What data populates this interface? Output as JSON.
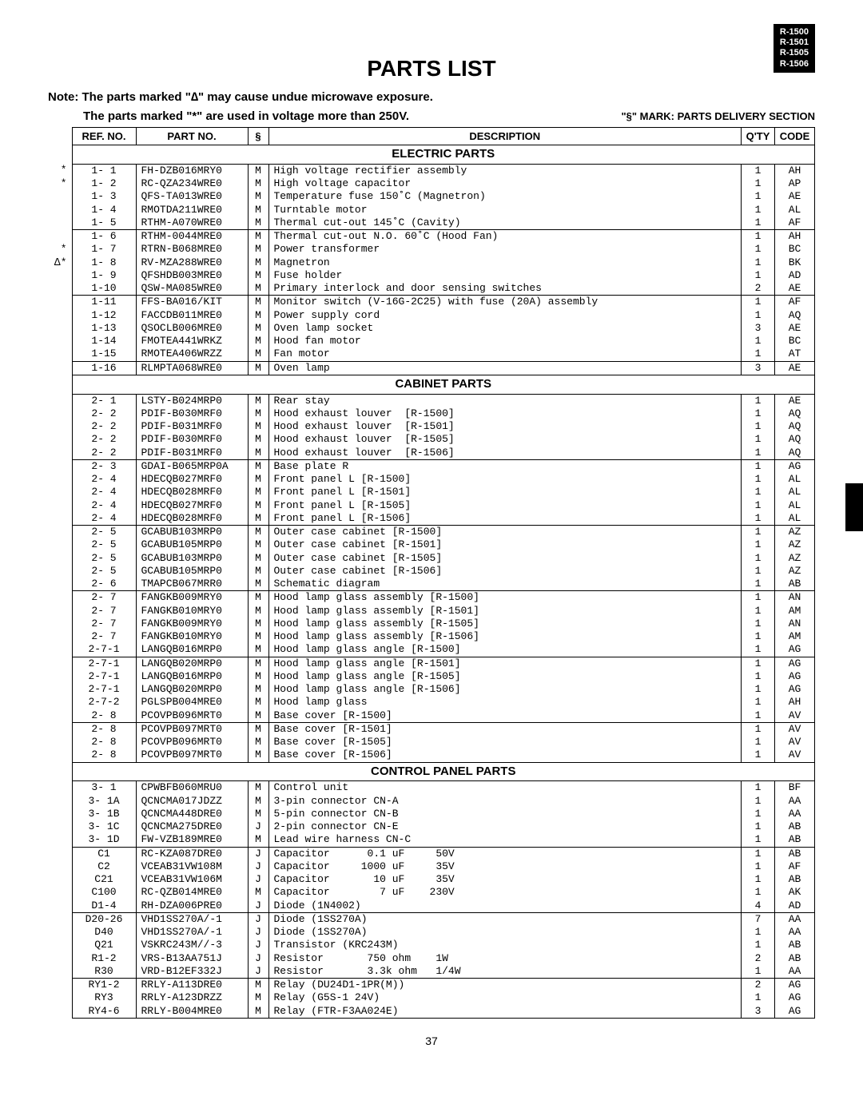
{
  "models": [
    "R-1500",
    "R-1501",
    "R-1505",
    "R-1506"
  ],
  "title": "PARTS LIST",
  "note_line1": "Note: The parts marked \"∆\" may cause undue microwave exposure.",
  "note_line2": "The parts marked \"*\" are used in voltage more than 250V.",
  "delivery_mark": "\"§\" MARK: PARTS DELIVERY SECTION",
  "headers": {
    "ref": "REF. NO.",
    "part": "PART NO.",
    "s": "§",
    "desc": "DESCRIPTION",
    "qty": "Q'TY",
    "code": "CODE"
  },
  "sections": [
    {
      "title": "ELECTRIC PARTS",
      "groups": [
        [
          {
            "mark": "*",
            "ref": "1- 1",
            "part": "FH-DZB016MRY0",
            "s": "M",
            "desc": "High voltage rectifier assembly",
            "qty": "1",
            "code": "AH"
          },
          {
            "mark": "*",
            "ref": "1- 2",
            "part": "RC-QZA234WRE0",
            "s": "M",
            "desc": "High voltage capacitor",
            "qty": "1",
            "code": "AP"
          },
          {
            "mark": "",
            "ref": "1- 3",
            "part": "QFS-TA013WRE0",
            "s": "M",
            "desc": "Temperature fuse 150˚C (Magnetron)",
            "qty": "1",
            "code": "AE"
          },
          {
            "mark": "",
            "ref": "1- 4",
            "part": "RMOTDA211WRE0",
            "s": "M",
            "desc": "Turntable motor",
            "qty": "1",
            "code": "AL"
          },
          {
            "mark": "",
            "ref": "1- 5",
            "part": "RTHM-A070WRE0",
            "s": "M",
            "desc": "Thermal cut-out 145˚C (Cavity)",
            "qty": "1",
            "code": "AF"
          }
        ],
        [
          {
            "mark": "",
            "ref": "1- 6",
            "part": "RTHM-0044MRE0",
            "s": "M",
            "desc": "Thermal cut-out N.O. 60˚C (Hood Fan)",
            "qty": "1",
            "code": "AH"
          },
          {
            "mark": "*",
            "ref": "1- 7",
            "part": "RTRN-B068MRE0",
            "s": "M",
            "desc": "Power transformer",
            "qty": "1",
            "code": "BC"
          },
          {
            "mark": "∆*",
            "ref": "1- 8",
            "part": "RV-MZA288WRE0",
            "s": "M",
            "desc": "Magnetron",
            "qty": "1",
            "code": "BK"
          },
          {
            "mark": "",
            "ref": "1- 9",
            "part": "QFSHDB003MRE0",
            "s": "M",
            "desc": "Fuse holder",
            "qty": "1",
            "code": "AD"
          },
          {
            "mark": "",
            "ref": "1-10",
            "part": "QSW-MA085WRE0",
            "s": "M",
            "desc": "Primary interlock and door sensing switches",
            "qty": "2",
            "code": "AE"
          }
        ],
        [
          {
            "mark": "",
            "ref": "1-11",
            "part": "FFS-BA016/KIT",
            "s": "M",
            "desc": "Monitor switch (V-16G-2C25) with fuse (20A) assembly",
            "qty": "1",
            "code": "AF"
          },
          {
            "mark": "",
            "ref": "1-12",
            "part": "FACCDB011MRE0",
            "s": "M",
            "desc": "Power supply cord",
            "qty": "1",
            "code": "AQ"
          },
          {
            "mark": "",
            "ref": "1-13",
            "part": "QSOCLB006MRE0",
            "s": "M",
            "desc": "Oven lamp socket",
            "qty": "3",
            "code": "AE"
          },
          {
            "mark": "",
            "ref": "1-14",
            "part": "FMOTEA441WRKZ",
            "s": "M",
            "desc": "Hood fan motor",
            "qty": "1",
            "code": "BC"
          },
          {
            "mark": "",
            "ref": "1-15",
            "part": "RMOTEA406WRZZ",
            "s": "M",
            "desc": "Fan motor",
            "qty": "1",
            "code": "AT"
          }
        ],
        [
          {
            "mark": "",
            "ref": "1-16",
            "part": "RLMPTA068WRE0",
            "s": "M",
            "desc": "Oven lamp",
            "qty": "3",
            "code": "AE"
          }
        ]
      ]
    },
    {
      "title": "CABINET PARTS",
      "groups": [
        [
          {
            "mark": "",
            "ref": "2- 1",
            "part": "LSTY-B024MRP0",
            "s": "M",
            "desc": "Rear stay",
            "qty": "1",
            "code": "AE"
          },
          {
            "mark": "",
            "ref": "2- 2",
            "part": "PDIF-B030MRF0",
            "s": "M",
            "desc": "Hood exhaust louver  [R-1500]",
            "qty": "1",
            "code": "AQ"
          },
          {
            "mark": "",
            "ref": "2- 2",
            "part": "PDIF-B031MRF0",
            "s": "M",
            "desc": "Hood exhaust louver  [R-1501]",
            "qty": "1",
            "code": "AQ"
          },
          {
            "mark": "",
            "ref": "2- 2",
            "part": "PDIF-B030MRF0",
            "s": "M",
            "desc": "Hood exhaust louver  [R-1505]",
            "qty": "1",
            "code": "AQ"
          },
          {
            "mark": "",
            "ref": "2- 2",
            "part": "PDIF-B031MRF0",
            "s": "M",
            "desc": "Hood exhaust louver  [R-1506]",
            "qty": "1",
            "code": "AQ"
          }
        ],
        [
          {
            "mark": "",
            "ref": "2- 3",
            "part": "GDAI-B065MRP0A",
            "s": "M",
            "desc": "Base plate R",
            "qty": "1",
            "code": "AG"
          },
          {
            "mark": "",
            "ref": "2- 4",
            "part": "HDECQB027MRF0",
            "s": "M",
            "desc": "Front panel L [R-1500]",
            "qty": "1",
            "code": "AL"
          },
          {
            "mark": "",
            "ref": "2- 4",
            "part": "HDECQB028MRF0",
            "s": "M",
            "desc": "Front panel L [R-1501]",
            "qty": "1",
            "code": "AL"
          },
          {
            "mark": "",
            "ref": "2- 4",
            "part": "HDECQB027MRF0",
            "s": "M",
            "desc": "Front panel L [R-1505]",
            "qty": "1",
            "code": "AL"
          },
          {
            "mark": "",
            "ref": "2- 4",
            "part": "HDECQB028MRF0",
            "s": "M",
            "desc": "Front panel L [R-1506]",
            "qty": "1",
            "code": "AL"
          }
        ],
        [
          {
            "mark": "",
            "ref": "2- 5",
            "part": "GCABUB103MRP0",
            "s": "M",
            "desc": "Outer case cabinet [R-1500]",
            "qty": "1",
            "code": "AZ"
          },
          {
            "mark": "",
            "ref": "2- 5",
            "part": "GCABUB105MRP0",
            "s": "M",
            "desc": "Outer case cabinet [R-1501]",
            "qty": "1",
            "code": "AZ"
          },
          {
            "mark": "",
            "ref": "2- 5",
            "part": "GCABUB103MRP0",
            "s": "M",
            "desc": "Outer case cabinet [R-1505]",
            "qty": "1",
            "code": "AZ"
          },
          {
            "mark": "",
            "ref": "2- 5",
            "part": "GCABUB105MRP0",
            "s": "M",
            "desc": "Outer case cabinet [R-1506]",
            "qty": "1",
            "code": "AZ"
          },
          {
            "mark": "",
            "ref": "2- 6",
            "part": "TMAPCB067MRR0",
            "s": "M",
            "desc": "Schematic diagram",
            "qty": "1",
            "code": "AB"
          }
        ],
        [
          {
            "mark": "",
            "ref": "2- 7",
            "part": "FANGKB009MRY0",
            "s": "M",
            "desc": "Hood lamp glass assembly [R-1500]",
            "qty": "1",
            "code": "AN"
          },
          {
            "mark": "",
            "ref": "2- 7",
            "part": "FANGKB010MRY0",
            "s": "M",
            "desc": "Hood lamp glass assembly [R-1501]",
            "qty": "1",
            "code": "AM"
          },
          {
            "mark": "",
            "ref": "2- 7",
            "part": "FANGKB009MRY0",
            "s": "M",
            "desc": "Hood lamp glass assembly [R-1505]",
            "qty": "1",
            "code": "AN"
          },
          {
            "mark": "",
            "ref": "2- 7",
            "part": "FANGKB010MRY0",
            "s": "M",
            "desc": "Hood lamp glass assembly [R-1506]",
            "qty": "1",
            "code": "AM"
          },
          {
            "mark": "",
            "ref": "2-7-1",
            "part": "LANGQB016MRP0",
            "s": "M",
            "desc": "Hood lamp glass angle [R-1500]",
            "qty": "1",
            "code": "AG"
          }
        ],
        [
          {
            "mark": "",
            "ref": "2-7-1",
            "part": "LANGQB020MRP0",
            "s": "M",
            "desc": "Hood lamp glass angle [R-1501]",
            "qty": "1",
            "code": "AG"
          },
          {
            "mark": "",
            "ref": "2-7-1",
            "part": "LANGQB016MRP0",
            "s": "M",
            "desc": "Hood lamp glass angle [R-1505]",
            "qty": "1",
            "code": "AG"
          },
          {
            "mark": "",
            "ref": "2-7-1",
            "part": "LANGQB020MRP0",
            "s": "M",
            "desc": "Hood lamp glass angle [R-1506]",
            "qty": "1",
            "code": "AG"
          },
          {
            "mark": "",
            "ref": "2-7-2",
            "part": "PGLSPB004MRE0",
            "s": "M",
            "desc": "Hood lamp glass",
            "qty": "1",
            "code": "AH"
          },
          {
            "mark": "",
            "ref": "2- 8",
            "part": "PCOVPB096MRT0",
            "s": "M",
            "desc": "Base cover [R-1500]",
            "qty": "1",
            "code": "AV"
          }
        ],
        [
          {
            "mark": "",
            "ref": "2- 8",
            "part": "PCOVPB097MRT0",
            "s": "M",
            "desc": "Base cover [R-1501]",
            "qty": "1",
            "code": "AV"
          },
          {
            "mark": "",
            "ref": "2- 8",
            "part": "PCOVPB096MRT0",
            "s": "M",
            "desc": "Base cover [R-1505]",
            "qty": "1",
            "code": "AV"
          },
          {
            "mark": "",
            "ref": "2- 8",
            "part": "PCOVPB097MRT0",
            "s": "M",
            "desc": "Base cover [R-1506]",
            "qty": "1",
            "code": "AV"
          }
        ]
      ]
    },
    {
      "title": "CONTROL PANEL PARTS",
      "groups": [
        [
          {
            "mark": "",
            "ref": "3- 1",
            "part": "CPWBFB060MRU0",
            "s": "M",
            "desc": "Control unit",
            "qty": "1",
            "code": "BF"
          },
          {
            "mark": "",
            "ref": "3- 1A",
            "part": "QCNCMA017JDZZ",
            "s": "M",
            "desc": "3-pin connector CN-A",
            "qty": "1",
            "code": "AA"
          },
          {
            "mark": "",
            "ref": "3- 1B",
            "part": "QCNCMA448DRE0",
            "s": "M",
            "desc": "5-pin connector CN-B",
            "qty": "1",
            "code": "AA"
          },
          {
            "mark": "",
            "ref": "3- 1C",
            "part": "QCNCMA275DRE0",
            "s": "J",
            "desc": "2-pin connector CN-E",
            "qty": "1",
            "code": "AB"
          },
          {
            "mark": "",
            "ref": "3- 1D",
            "part": "FW-VZB189MRE0",
            "s": "M",
            "desc": "Lead wire harness CN-C",
            "qty": "1",
            "code": "AB"
          }
        ],
        [
          {
            "mark": "",
            "ref": "C1",
            "part": "RC-KZA087DRE0",
            "s": "J",
            "desc": "Capacitor      0.1 uF     50V",
            "qty": "1",
            "code": "AB"
          },
          {
            "mark": "",
            "ref": "C2",
            "part": "VCEAB31VW108M",
            "s": "J",
            "desc": "Capacitor     1000 uF     35V",
            "qty": "1",
            "code": "AF"
          },
          {
            "mark": "",
            "ref": "C21",
            "part": "VCEAB31VW106M",
            "s": "J",
            "desc": "Capacitor       10 uF     35V",
            "qty": "1",
            "code": "AB"
          },
          {
            "mark": "",
            "ref": "C100",
            "part": "RC-QZB014MRE0",
            "s": "M",
            "desc": "Capacitor        7 uF    230V",
            "qty": "1",
            "code": "AK"
          },
          {
            "mark": "",
            "ref": "D1-4",
            "part": "RH-DZA006PRE0",
            "s": "J",
            "desc": "Diode (1N4002)",
            "qty": "4",
            "code": "AD"
          }
        ],
        [
          {
            "mark": "",
            "ref": "D20-26",
            "part": "VHD1SS270A/-1",
            "s": "J",
            "desc": "Diode (1SS270A)",
            "qty": "7",
            "code": "AA"
          },
          {
            "mark": "",
            "ref": "D40",
            "part": "VHD1SS270A/-1",
            "s": "J",
            "desc": "Diode (1SS270A)",
            "qty": "1",
            "code": "AA"
          },
          {
            "mark": "",
            "ref": "Q21",
            "part": "VSKRC243M//-3",
            "s": "J",
            "desc": "Transistor (KRC243M)",
            "qty": "1",
            "code": "AB"
          },
          {
            "mark": "",
            "ref": "R1-2",
            "part": "VRS-B13AA751J",
            "s": "J",
            "desc": "Resistor       750 ohm    1W",
            "qty": "2",
            "code": "AB"
          },
          {
            "mark": "",
            "ref": "R30",
            "part": "VRD-B12EF332J",
            "s": "J",
            "desc": "Resistor       3.3k ohm   1/4W",
            "qty": "1",
            "code": "AA"
          }
        ],
        [
          {
            "mark": "",
            "ref": "RY1-2",
            "part": "RRLY-A113DRE0",
            "s": "M",
            "desc": "Relay (DU24D1-1PR(M))",
            "qty": "2",
            "code": "AG"
          },
          {
            "mark": "",
            "ref": "RY3",
            "part": "RRLY-A123DRZZ",
            "s": "M",
            "desc": "Relay (G5S-1 24V)",
            "qty": "1",
            "code": "AG"
          },
          {
            "mark": "",
            "ref": "RY4-6",
            "part": "RRLY-B004MRE0",
            "s": "M",
            "desc": "Relay (FTR-F3AA024E)",
            "qty": "3",
            "code": "AG"
          }
        ]
      ]
    }
  ],
  "page_number": "37"
}
